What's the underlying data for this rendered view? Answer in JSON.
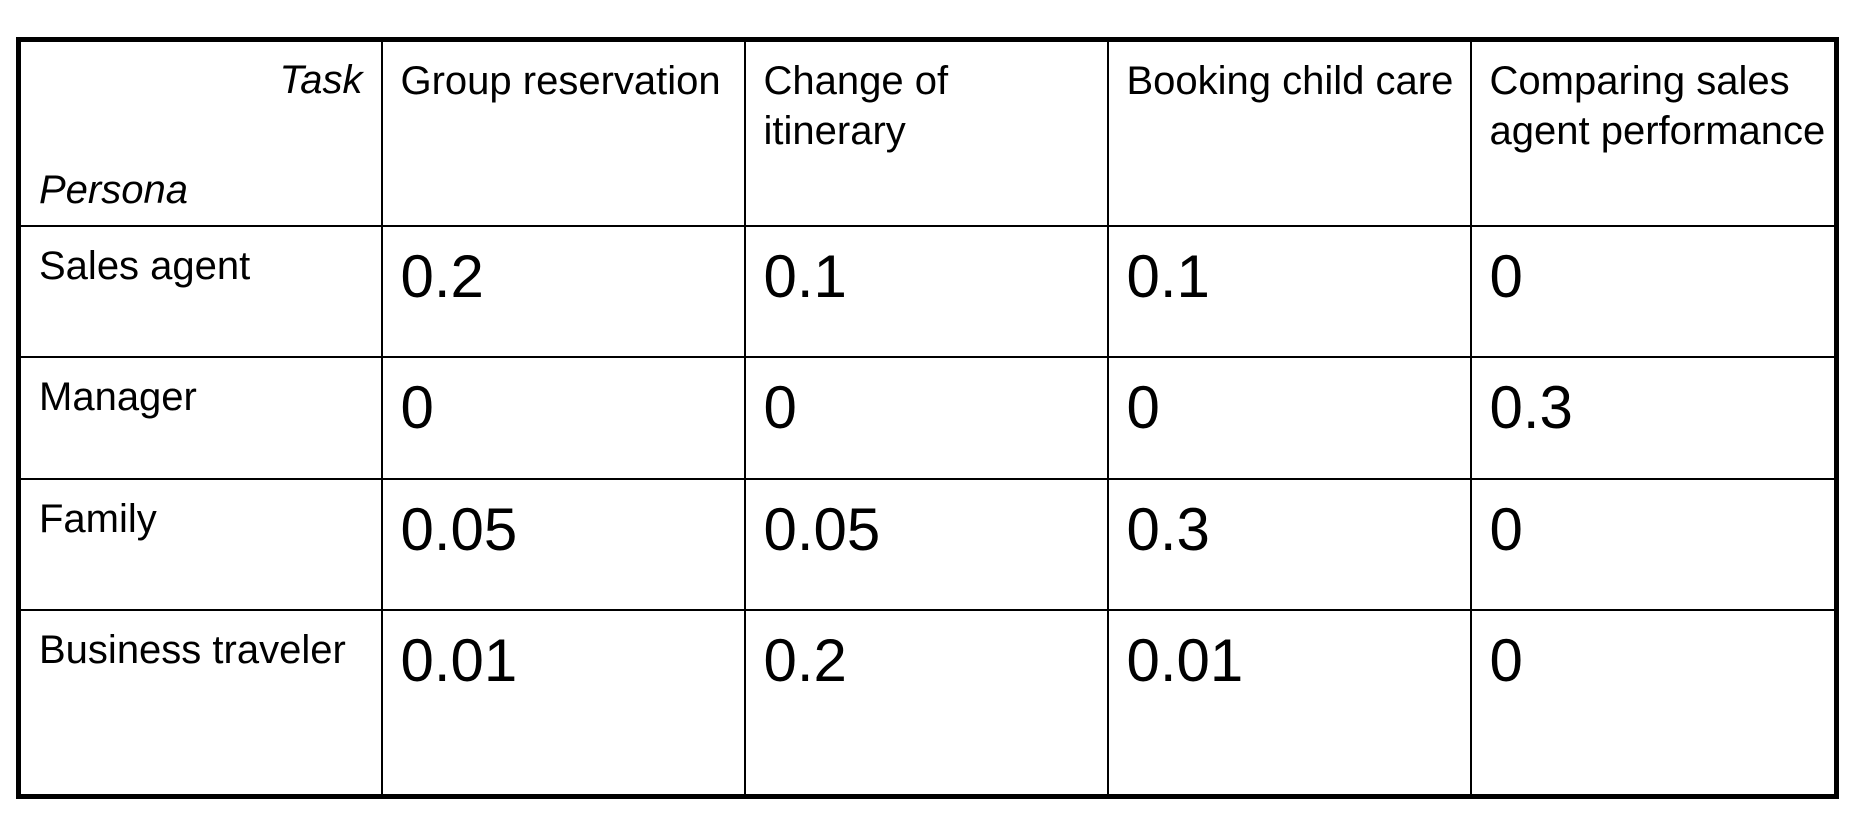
{
  "matrix": {
    "column_axis_label": "Task",
    "row_axis_label": "Persona",
    "tasks": [
      "Group reservation",
      "Change of itinerary",
      "Booking child care",
      "Comparing sales agent performance"
    ],
    "rows": [
      {
        "persona": "Sales agent",
        "values": [
          "0.2",
          "0.1",
          "0.1",
          "0"
        ]
      },
      {
        "persona": "Manager",
        "values": [
          "0",
          "0",
          "0",
          "0.3"
        ]
      },
      {
        "persona": "Family",
        "values": [
          "0.05",
          "0.05",
          "0.3",
          "0"
        ]
      },
      {
        "persona": "Business traveler",
        "values": [
          "0.01",
          "0.2",
          "0.01",
          "0"
        ]
      }
    ]
  }
}
